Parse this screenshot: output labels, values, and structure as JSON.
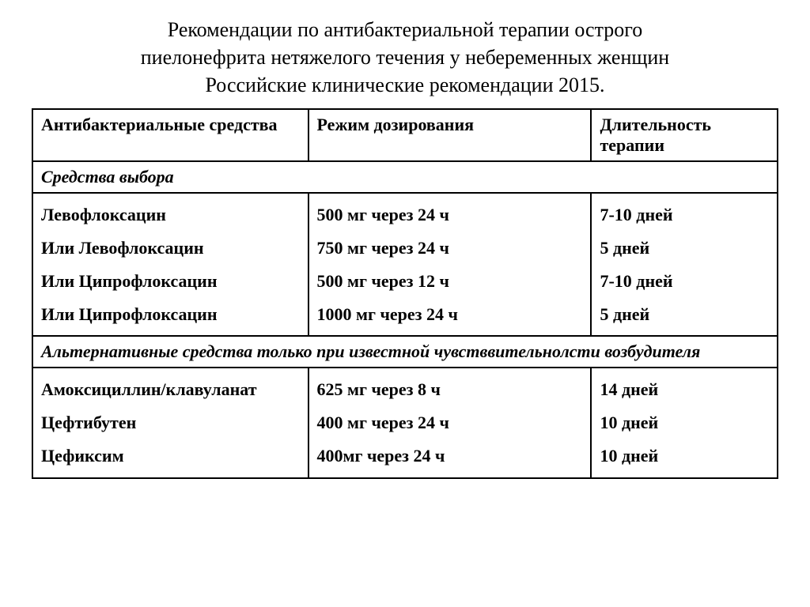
{
  "title_lines": [
    "Рекомендации по антибактериальной терапии острого",
    "пиелонефрита нетяжелого течения у небеременных женщин",
    "Российские клинические рекомендации 2015."
  ],
  "headers": {
    "col1": "Антибактериальные средства",
    "col2": "Режим дозирования",
    "col3": "Длительность терапии"
  },
  "sections": [
    {
      "label": "Средства выбора",
      "drugs": [
        "Левофлоксацин",
        "Или Левофлоксацин",
        "Или Ципрофлоксацин",
        "Или Ципрофлоксацин"
      ],
      "doses": [
        "500 мг через 24 ч",
        "750 мг через 24 ч",
        "500 мг через 12 ч",
        "1000 мг через 24 ч"
      ],
      "durations": [
        " 7-10 дней",
        "5 дней",
        "7-10 дней",
        "5 дней"
      ]
    },
    {
      "label": "Альтернативные средства только при известной чувстввительнолсти возбудителя",
      "drugs": [
        "Амоксициллин/клавуланат",
        "Цефтибутен",
        "Цефиксим"
      ],
      "doses": [
        "625 мг через 8 ч",
        "400 мг через 24 ч",
        "400мг через  24 ч"
      ],
      "durations": [
        "14 дней",
        "10 дней",
        "10 дней"
      ]
    }
  ],
  "style": {
    "font_family": "Times New Roman",
    "title_fontsize": 26,
    "cell_fontsize": 22,
    "border_color": "#000000",
    "background": "#ffffff",
    "text_color": "#000000",
    "col_widths_pct": [
      37,
      38,
      25
    ],
    "multiline_line_height": 1.9
  }
}
